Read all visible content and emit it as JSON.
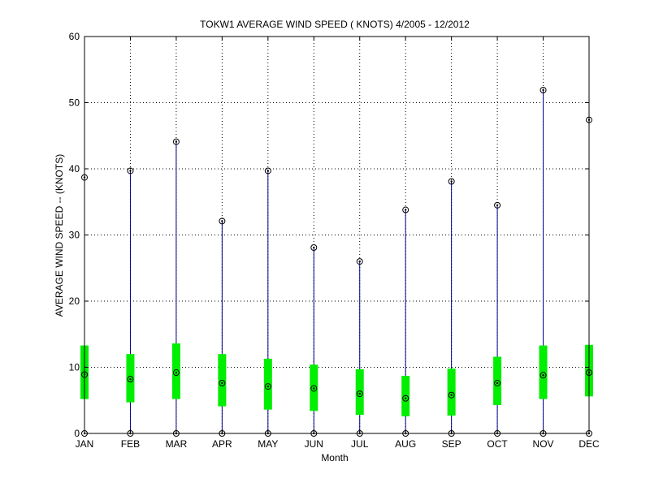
{
  "chart_data": {
    "type": "boxplot",
    "title": "TOKW1  AVERAGE WIND SPEED ( KNOTS) 4/2005 - 12/2012",
    "xlabel": "Month",
    "ylabel": "AVERAGE WIND SPEED -- (KNOTS)",
    "ylim": [
      0,
      60
    ],
    "yticks": [
      "0",
      "10",
      "20",
      "30",
      "40",
      "50",
      "60"
    ],
    "grid": true,
    "categories": [
      "JAN",
      "FEB",
      "MAR",
      "APR",
      "MAY",
      "JUN",
      "JUL",
      "AUG",
      "SEP",
      "OCT",
      "NOV",
      "DEC"
    ],
    "min": [
      0,
      0,
      0,
      0,
      0,
      0,
      0,
      0,
      0,
      0,
      0,
      0
    ],
    "max": [
      38.7,
      39.7,
      44.1,
      32.1,
      39.7,
      28.1,
      26.0,
      33.8,
      38.1,
      34.5,
      51.9,
      47.4
    ],
    "q1": [
      5.2,
      4.7,
      5.2,
      4.1,
      3.6,
      3.4,
      2.8,
      2.6,
      2.7,
      4.3,
      5.2,
      5.6
    ],
    "q3": [
      13.3,
      12.0,
      13.6,
      12.0,
      11.3,
      10.4,
      9.7,
      8.7,
      9.8,
      11.6,
      13.3,
      13.4
    ],
    "median": [
      8.9,
      8.2,
      9.2,
      7.6,
      7.1,
      6.8,
      6.0,
      5.3,
      5.8,
      7.6,
      8.8,
      9.2
    ],
    "colors": {
      "whisker": "#00008b",
      "box": "#00ee00",
      "marker": "#000000",
      "grid": "#000000"
    }
  }
}
